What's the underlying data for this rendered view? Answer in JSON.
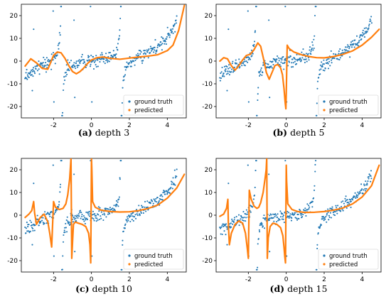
{
  "colors": {
    "ground_truth": "#1f77b4",
    "predicted": "#ff7f0e"
  },
  "chart_data": [
    {
      "type": "scatter",
      "panel": "a",
      "caption_label": "(a)",
      "caption_text": "depth 3",
      "xlim": [
        -3.7,
        5.0
      ],
      "ylim": [
        -25,
        25
      ],
      "xticks": [
        {
          "v": -2,
          "label": "-2"
        },
        {
          "v": 0,
          "label": "0"
        },
        {
          "v": 2,
          "label": "2"
        },
        {
          "v": 4,
          "label": "4"
        }
      ],
      "yticks": [
        {
          "v": -20,
          "label": "-20"
        },
        {
          "v": -10,
          "label": "-10"
        },
        {
          "v": 0,
          "label": "0"
        },
        {
          "v": 10,
          "label": "10"
        },
        {
          "v": 20,
          "label": "20"
        }
      ],
      "legend": {
        "position": "lower-right",
        "entries": [
          "ground truth",
          "predicted"
        ]
      },
      "series": [
        {
          "name": "ground truth",
          "style": "points",
          "x_range": [
            -3.5,
            4.5
          ],
          "shape": "tan(x)+0.15x^3 with noise, spikes near x=-3.1,-2.0,-0.9,0.0"
        },
        {
          "name": "predicted",
          "style": "line",
          "x": [
            -3.5,
            -3.2,
            -2.9,
            -2.6,
            -2.3,
            -2.0,
            -1.8,
            -1.6,
            -1.4,
            -1.2,
            -1.0,
            -0.8,
            -0.6,
            -0.4,
            -0.2,
            0.0,
            0.3,
            0.6,
            1.0,
            1.5,
            2.0,
            2.5,
            3.0,
            3.5,
            4.0,
            4.3,
            4.6,
            4.9
          ],
          "y": [
            -2.2,
            1.0,
            -0.8,
            -3.2,
            -3.6,
            2.5,
            4.0,
            3.6,
            1.2,
            -2.0,
            -4.6,
            -5.6,
            -4.6,
            -3.0,
            -1.0,
            0.5,
            1.5,
            1.8,
            1.2,
            0.8,
            1.3,
            1.8,
            2.2,
            2.8,
            4.6,
            7.0,
            13.5,
            24.5
          ]
        }
      ]
    },
    {
      "type": "scatter",
      "panel": "b",
      "caption_label": "(b)",
      "caption_text": "depth 5",
      "xlim": [
        -3.7,
        5.0
      ],
      "ylim": [
        -25,
        25
      ],
      "xticks": [
        {
          "v": -2,
          "label": "-2"
        },
        {
          "v": 0,
          "label": "0"
        },
        {
          "v": 2,
          "label": "2"
        },
        {
          "v": 4,
          "label": "4"
        }
      ],
      "yticks": [
        {
          "v": -20,
          "label": "-20"
        },
        {
          "v": -10,
          "label": "-10"
        },
        {
          "v": 0,
          "label": "0"
        },
        {
          "v": 10,
          "label": "10"
        },
        {
          "v": 20,
          "label": "20"
        }
      ],
      "legend": {
        "position": "lower-right",
        "entries": [
          "ground truth",
          "predicted"
        ]
      },
      "series": [
        {
          "name": "ground truth",
          "style": "points",
          "x_range": [
            -3.5,
            4.5
          ],
          "shape": "tan(x)+0.15x^3 with noise, spikes near x=-3.1,-2.0,-0.9,0.0"
        },
        {
          "name": "predicted",
          "style": "line",
          "x": [
            -3.5,
            -3.3,
            -3.1,
            -2.9,
            -2.7,
            -2.5,
            -2.3,
            -2.1,
            -1.9,
            -1.7,
            -1.5,
            -1.35,
            -1.2,
            -1.05,
            -0.9,
            -0.75,
            -0.6,
            -0.45,
            -0.3,
            -0.2,
            -0.12,
            -0.06,
            -0.02,
            0.0,
            0.05,
            0.15,
            0.4,
            0.8,
            1.2,
            1.6,
            2.0,
            2.5,
            3.0,
            3.5,
            4.0,
            4.5,
            4.9
          ],
          "y": [
            0.0,
            1.5,
            1.0,
            -2.0,
            -4.0,
            -2.0,
            0.5,
            2.5,
            3.0,
            5.0,
            8.0,
            6.5,
            1.0,
            -5.0,
            -8.0,
            -5.0,
            -2.0,
            -1.5,
            -3.0,
            -6.0,
            -12.0,
            -18.0,
            -21.0,
            -14.0,
            7.0,
            5.5,
            4.0,
            2.8,
            2.0,
            1.5,
            1.4,
            2.0,
            3.0,
            4.5,
            7.0,
            10.5,
            14.0
          ]
        }
      ]
    },
    {
      "type": "scatter",
      "panel": "c",
      "caption_label": "(c)",
      "caption_text": "depth 10",
      "xlim": [
        -3.7,
        5.0
      ],
      "ylim": [
        -25,
        25
      ],
      "xticks": [
        {
          "v": -2,
          "label": "-2"
        },
        {
          "v": 0,
          "label": "0"
        },
        {
          "v": 2,
          "label": "2"
        },
        {
          "v": 4,
          "label": "4"
        }
      ],
      "yticks": [
        {
          "v": -20,
          "label": "-20"
        },
        {
          "v": -10,
          "label": "-10"
        },
        {
          "v": 0,
          "label": "0"
        },
        {
          "v": 10,
          "label": "10"
        },
        {
          "v": 20,
          "label": "20"
        }
      ],
      "legend": {
        "position": "lower-right",
        "entries": [
          "ground truth",
          "predicted"
        ]
      },
      "series": [
        {
          "name": "ground truth",
          "style": "points",
          "x_range": [
            -3.5,
            4.5
          ],
          "shape": "tan(x)+0.15x^3 with noise, spikes near x=-3.1,-2.0,-0.9,0.0"
        },
        {
          "name": "predicted",
          "style": "line",
          "x": [
            -3.5,
            -3.3,
            -3.15,
            -3.05,
            -3.0,
            -2.9,
            -2.7,
            -2.5,
            -2.3,
            -2.2,
            -2.1,
            -2.0,
            -1.9,
            -1.7,
            -1.5,
            -1.35,
            -1.25,
            -1.15,
            -1.08,
            -1.04,
            -1.0,
            -0.95,
            -0.85,
            -0.7,
            -0.5,
            -0.3,
            -0.15,
            -0.08,
            -0.04,
            0.0,
            0.02,
            0.06,
            0.2,
            0.5,
            1.0,
            1.5,
            2.0,
            2.5,
            3.0,
            3.5,
            4.0,
            4.5,
            4.9
          ],
          "y": [
            -1.0,
            0.5,
            2.0,
            6.0,
            1.0,
            -4.0,
            -1.0,
            0.5,
            -3.0,
            -8.0,
            -14.0,
            6.0,
            3.5,
            2.5,
            3.0,
            5.0,
            9.0,
            16.0,
            25.0,
            -19.0,
            -12.0,
            -4.0,
            -3.0,
            -3.5,
            -4.0,
            -5.0,
            -8.0,
            -13.0,
            -21.0,
            25.0,
            20.0,
            6.0,
            3.5,
            2.2,
            1.6,
            1.4,
            1.5,
            2.0,
            3.0,
            4.5,
            7.5,
            12.0,
            18.0
          ]
        }
      ]
    },
    {
      "type": "scatter",
      "panel": "d",
      "caption_label": "(d)",
      "caption_text": "depth 15",
      "xlim": [
        -3.7,
        5.0
      ],
      "ylim": [
        -25,
        25
      ],
      "xticks": [
        {
          "v": -2,
          "label": "-2"
        },
        {
          "v": 0,
          "label": "0"
        },
        {
          "v": 2,
          "label": "2"
        },
        {
          "v": 4,
          "label": "4"
        }
      ],
      "yticks": [
        {
          "v": -20,
          "label": "-20"
        },
        {
          "v": -10,
          "label": "-10"
        },
        {
          "v": 0,
          "label": "0"
        },
        {
          "v": 10,
          "label": "10"
        },
        {
          "v": 20,
          "label": "20"
        }
      ],
      "legend": {
        "position": "lower-right",
        "entries": [
          "ground truth",
          "predicted"
        ]
      },
      "series": [
        {
          "name": "ground truth",
          "style": "points",
          "x_range": [
            -3.5,
            4.5
          ],
          "shape": "tan(x)+0.15x^3 with noise, spikes near x=-3.1,-2.0,-0.9,0.0"
        },
        {
          "name": "predicted",
          "style": "line",
          "x": [
            -3.5,
            -3.3,
            -3.15,
            -3.08,
            -3.05,
            -3.0,
            -2.9,
            -2.7,
            -2.5,
            -2.3,
            -2.15,
            -2.05,
            -2.0,
            -1.95,
            -1.85,
            -1.7,
            -1.55,
            -1.45,
            -1.35,
            -1.22,
            -1.12,
            -1.06,
            -1.03,
            -1.0,
            -0.95,
            -0.85,
            -0.7,
            -0.5,
            -0.3,
            -0.18,
            -0.12,
            -0.08,
            -0.04,
            0.0,
            0.02,
            0.08,
            0.3,
            0.6,
            1.0,
            1.5,
            2.0,
            2.5,
            3.0,
            3.5,
            4.0,
            4.5,
            4.9
          ],
          "y": [
            -0.5,
            0.5,
            3.0,
            7.0,
            -5.0,
            -13.0,
            -8.0,
            -4.0,
            -2.5,
            -3.5,
            -8.0,
            -15.0,
            -19.0,
            11.0,
            7.0,
            4.0,
            3.0,
            3.5,
            5.5,
            10.0,
            16.0,
            20.0,
            25.0,
            -19.0,
            -10.0,
            -5.0,
            -3.5,
            -4.0,
            -5.5,
            -9.0,
            -14.0,
            -18.0,
            -21.0,
            22.0,
            15.0,
            5.0,
            2.5,
            1.6,
            1.2,
            1.3,
            1.6,
            2.2,
            3.2,
            5.0,
            8.0,
            13.0,
            22.0
          ]
        }
      ]
    }
  ]
}
